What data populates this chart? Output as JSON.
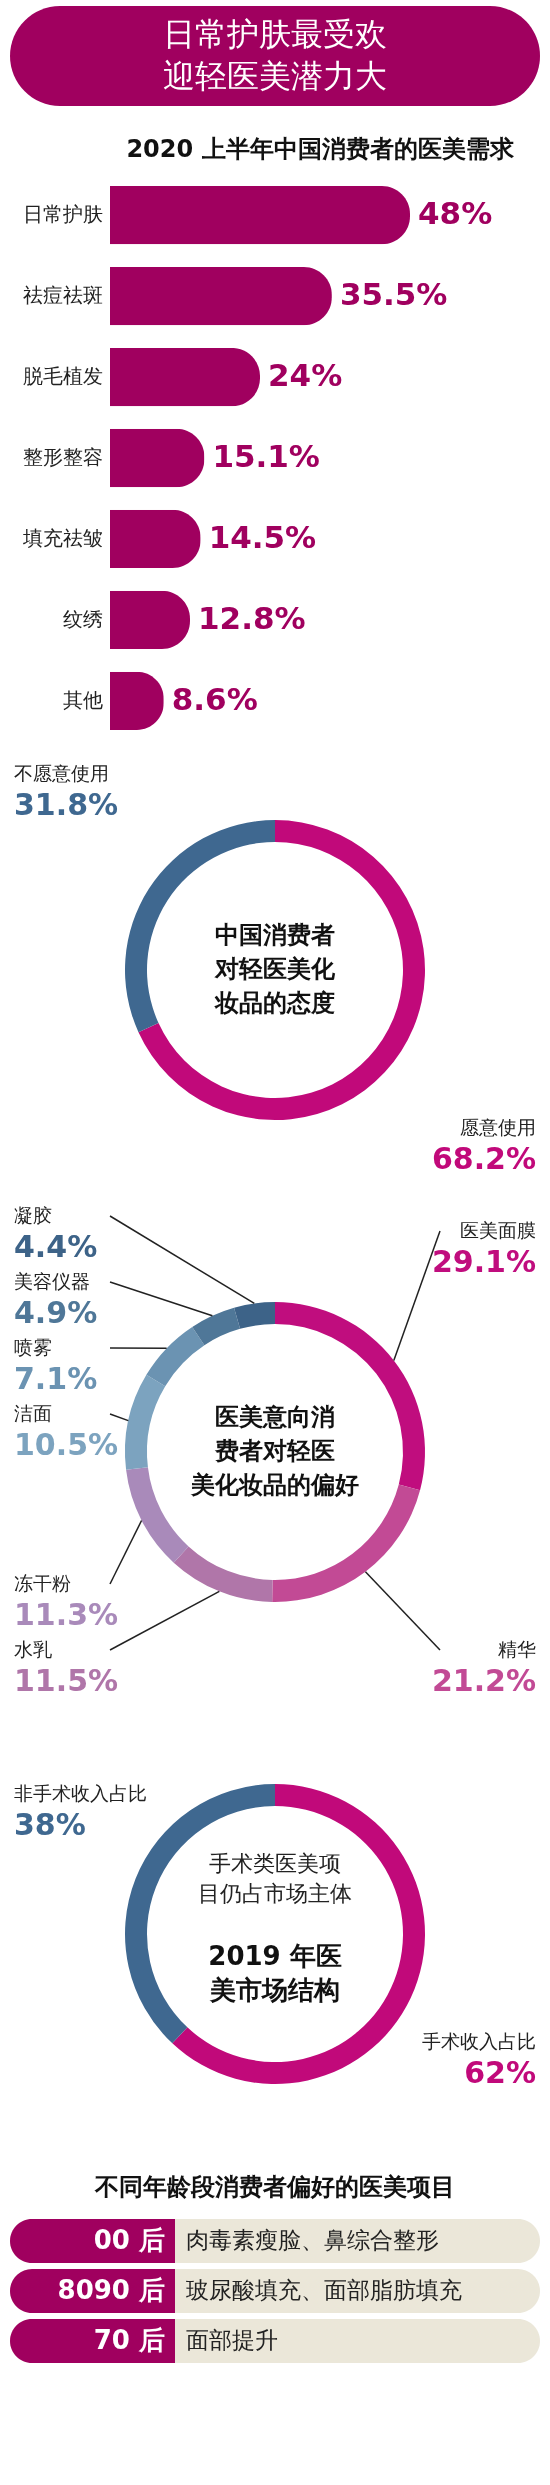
{
  "chart_data": [
    {
      "type": "other",
      "title": "日常护肤最受欢迎轻医美潜力大"
    },
    {
      "type": "bar",
      "orientation": "horizontal",
      "title": "2020 上半年中国消费者的医美需求",
      "categories": [
        "日常护肤",
        "祛痘祛斑",
        "脱毛植发",
        "整形整容",
        "填充祛皱",
        "纹绣",
        "其他"
      ],
      "values": [
        48,
        35.5,
        24,
        15.1,
        14.5,
        12.8,
        8.6
      ],
      "color": "#a0005f",
      "value_labels": [
        "48%",
        "35.5%",
        "24%",
        "15.1%",
        "14.5%",
        "12.8%",
        "8.6%"
      ]
    },
    {
      "type": "donut",
      "title": "中国消费者对轻医美化妆品的态度",
      "categories": [
        "愿意使用",
        "不愿意使用"
      ],
      "values": [
        68.2,
        31.8
      ],
      "colors": [
        "#c1097a",
        "#3f6890"
      ],
      "value_labels": [
        "68.2%",
        "31.8%"
      ]
    },
    {
      "type": "donut",
      "title": "医美意向消费者对轻医美化妆品的偏好",
      "categories": [
        "医美面膜",
        "精华",
        "水乳",
        "冻干粉",
        "洁面",
        "喷雾",
        "美容仪器",
        "凝胶"
      ],
      "values": [
        29.1,
        21.2,
        11.5,
        11.3,
        10.5,
        7.1,
        4.9,
        4.4
      ],
      "colors": [
        "#c00d7e",
        "#c24a95",
        "#b076a9",
        "#a98aba",
        "#7ca3bf",
        "#6b93b2",
        "#4f7798",
        "#3d6388"
      ],
      "value_labels": [
        "29.1%",
        "21.2%",
        "11.5%",
        "11.3%",
        "10.5%",
        "7.1%",
        "4.9%",
        "4.4%"
      ]
    },
    {
      "type": "donut",
      "subtitle": "手术类医美项目仍占市场主体",
      "title": "2019 年医美市场结构",
      "categories": [
        "手术收入占比",
        "非手术收入占比"
      ],
      "values": [
        62,
        38
      ],
      "colors": [
        "#c1097a",
        "#3f6890"
      ],
      "value_labels": [
        "62%",
        "38%"
      ]
    },
    {
      "type": "other",
      "title": "不同年龄段消费者偏好的医美项目",
      "categories": [
        "00 后",
        "8090 后",
        "70 后"
      ],
      "annotations": [
        "肉毒素瘦脸、鼻综合整形",
        "玻尿酸填充、面部脂肪填充",
        "面部提升"
      ]
    }
  ]
}
